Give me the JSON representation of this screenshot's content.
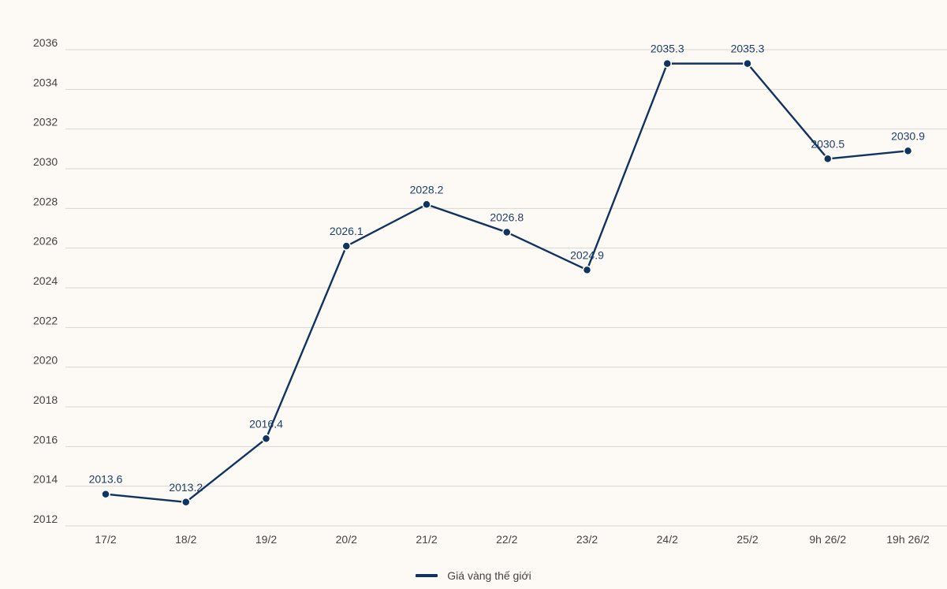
{
  "chart_data": {
    "type": "line",
    "title": "",
    "xlabel": "",
    "ylabel": "",
    "categories": [
      "17/2",
      "18/2",
      "19/2",
      "20/2",
      "21/2",
      "22/2",
      "23/2",
      "24/2",
      "25/2",
      "9h 26/2",
      "19h 26/2"
    ],
    "series": [
      {
        "name": "Giá vàng thế giới",
        "values": [
          2013.6,
          2013.2,
          2016.4,
          2026.1,
          2028.2,
          2026.8,
          2024.9,
          2035.3,
          2035.3,
          2030.5,
          2030.9
        ],
        "labels": [
          "2013.6",
          "2013.2",
          "2016.4",
          "2026.1",
          "2028.2",
          "2026.8",
          "2024.9",
          "2035.3",
          "2035.3",
          "2030.5",
          "2030.9"
        ],
        "color": "#10335f"
      }
    ],
    "ylim": [
      2012,
      2036
    ],
    "yticks": [
      "2012",
      "2014",
      "2016",
      "2018",
      "2020",
      "2022",
      "2024",
      "2026",
      "2028",
      "2030",
      "2032",
      "2034",
      "2036"
    ],
    "grid": true,
    "legend_position": "bottom-center"
  },
  "legend": {
    "label": "Giá vàng thế giới"
  },
  "colors": {
    "background": "#fdfaf6",
    "series": "#10335f",
    "grid": "#d9d6d2",
    "data_label": "#1e3f6b"
  }
}
